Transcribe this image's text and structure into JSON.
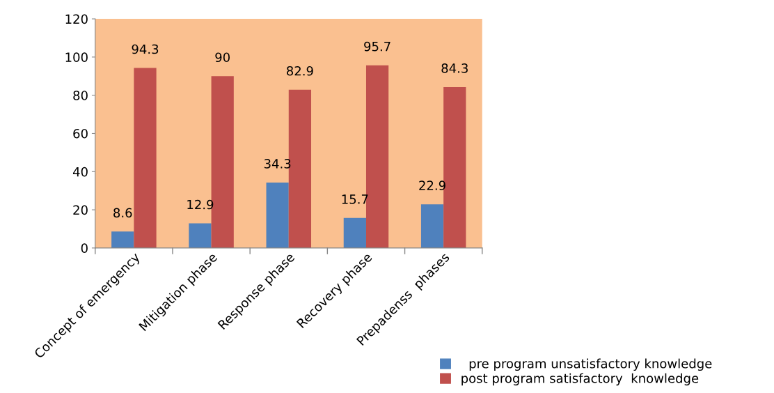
{
  "chart_data": {
    "type": "bar",
    "categories": [
      "Concept of emergency",
      "Mitigation phase",
      "Response phase",
      "Recovery phase",
      "Prepadenss  phases"
    ],
    "series": [
      {
        "name": "  pre program unsatisfactory knowledge",
        "color": "#4f81bd",
        "values": [
          8.6,
          12.9,
          34.3,
          15.7,
          22.9
        ]
      },
      {
        "name": "post program satisfactory  knowledge",
        "color": "#c0504d",
        "values": [
          94.3,
          90,
          82.9,
          95.7,
          84.3
        ]
      }
    ],
    "ylim": [
      0,
      120
    ],
    "yticks": [
      0,
      20,
      40,
      60,
      80,
      100,
      120
    ],
    "grid": false,
    "legend": "bottom right",
    "data_labels": true
  }
}
